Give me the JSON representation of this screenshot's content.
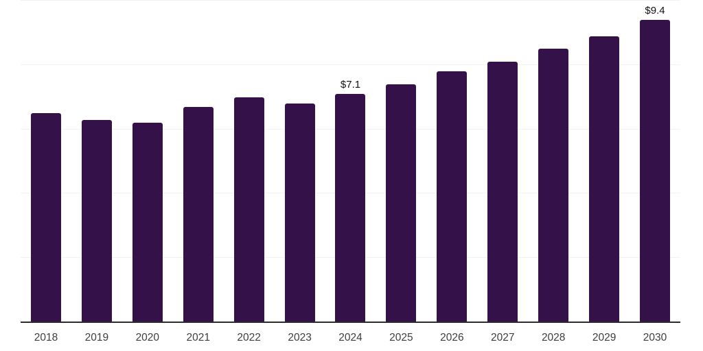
{
  "chart_data": {
    "type": "bar",
    "categories": [
      "2018",
      "2019",
      "2020",
      "2021",
      "2022",
      "2023",
      "2024",
      "2025",
      "2026",
      "2027",
      "2028",
      "2029",
      "2030"
    ],
    "values": [
      6.5,
      6.3,
      6.2,
      6.7,
      7.0,
      6.8,
      7.1,
      7.4,
      7.8,
      8.1,
      8.5,
      8.9,
      9.4
    ],
    "annotations": [
      {
        "category": "2024",
        "text": "$7.1"
      },
      {
        "category": "2030",
        "text": "$9.4"
      }
    ],
    "ylim": [
      0,
      10
    ],
    "gridline_values": [
      2,
      4,
      6,
      8,
      10
    ],
    "grid": "horizontal",
    "legend_position": "none",
    "bar_color": "#341249",
    "grid_color": "#f2f2f2",
    "axis_color": "#2b2b2b",
    "tick_label_color": "#3d3d3d",
    "annotation_color": "#111111",
    "background_color": "#ffffff"
  }
}
